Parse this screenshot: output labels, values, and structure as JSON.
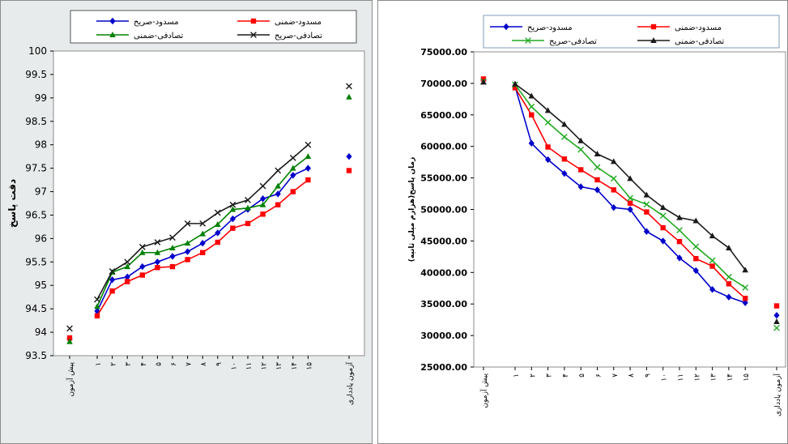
{
  "chart_data": [
    {
      "type": "line",
      "ylabel": "دقت پاسخ",
      "xlabel": "",
      "ylim": [
        93.5,
        100
      ],
      "y_ticks": [
        "93.5",
        "94",
        "94.5",
        "95",
        "95.5",
        "96",
        "96.5",
        "97",
        "97.5",
        "98",
        "98.5",
        "99",
        "99.5",
        "100"
      ],
      "categories": [
        "پیش آزمون",
        "۱",
        "۲",
        "۳",
        "۴",
        "۵",
        "۶",
        "۷",
        "۸",
        "۹",
        "۱۰",
        "۱۱",
        "۱۲",
        "۱۳",
        "۱۴",
        "۱۵",
        "آزمون یادداری"
      ],
      "grid": false,
      "legend_position": "top",
      "series": [
        {
          "name": "مسدود-صریح",
          "color": "#0000cc",
          "marker": "diamond",
          "values": [
            93.85,
            94.45,
            95.12,
            95.18,
            95.4,
            95.5,
            95.62,
            95.72,
            95.9,
            96.12,
            96.42,
            96.62,
            96.85,
            96.95,
            97.35,
            97.5,
            97.75
          ]
        },
        {
          "name": "مسدود-ضمنی",
          "color": "#ff0000",
          "marker": "square",
          "values": [
            93.88,
            94.35,
            94.88,
            95.08,
            95.22,
            95.38,
            95.4,
            95.55,
            95.7,
            95.92,
            96.22,
            96.32,
            96.52,
            96.72,
            97.0,
            97.25,
            97.45
          ]
        },
        {
          "name": "تصادفی-ضمنی",
          "color": "#008000",
          "marker": "triangle",
          "values": [
            93.8,
            94.55,
            95.28,
            95.4,
            95.7,
            95.7,
            95.8,
            95.9,
            96.1,
            96.3,
            96.62,
            96.65,
            96.72,
            97.12,
            97.5,
            97.75,
            99.02
          ]
        },
        {
          "name": "تصادفی-صریح",
          "color": "#1a1a1a",
          "marker": "x",
          "values": [
            94.08,
            94.7,
            95.3,
            95.5,
            95.82,
            95.92,
            96.02,
            96.32,
            96.32,
            96.55,
            96.72,
            96.82,
            97.12,
            97.45,
            97.72,
            98.0,
            99.25
          ]
        }
      ]
    },
    {
      "type": "line",
      "ylabel": "زمان پاسخ(هزارم میلی ثانیه)",
      "xlabel": "",
      "ylim": [
        25000,
        75000
      ],
      "y_ticks": [
        "25000.00",
        "30000.00",
        "35000.00",
        "40000.00",
        "45000.00",
        "50000.00",
        "55000.00",
        "60000.00",
        "65000.00",
        "70000.00",
        "75000.00"
      ],
      "categories": [
        "پیش آزمون",
        "۱",
        "۲",
        "۳",
        "۴",
        "۵",
        "۶",
        "۷",
        "۸",
        "۹",
        "۱۰",
        "۱۱",
        "۱۲",
        "۱۳",
        "۱۴",
        "۱۵",
        "آزمون یادداری"
      ],
      "grid": false,
      "legend_position": "top",
      "series": [
        {
          "name": "مسدود-صریح",
          "color": "#0000cc",
          "marker": "diamond",
          "values": [
            70500,
            69500,
            60500,
            57900,
            55700,
            53600,
            53100,
            50300,
            50000,
            46500,
            45000,
            42300,
            40300,
            37300,
            36100,
            35200,
            33200
          ]
        },
        {
          "name": "مسدود-ضمنی",
          "color": "#ff0000",
          "marker": "square",
          "values": [
            70700,
            69300,
            65000,
            59900,
            58000,
            56300,
            54700,
            53100,
            51000,
            49600,
            47100,
            44900,
            42200,
            41000,
            38200,
            35900,
            34700
          ]
        },
        {
          "name": "تصادفی-صریح",
          "color": "#22aa22",
          "marker": "x",
          "values": [
            70300,
            69800,
            66300,
            63800,
            61500,
            59500,
            56700,
            54900,
            51800,
            50800,
            49000,
            46700,
            44100,
            41900,
            39300,
            37600,
            31200
          ]
        },
        {
          "name": "تصادفی-ضمنی",
          "color": "#1a1a1a",
          "marker": "triangle",
          "values": [
            70200,
            69900,
            68000,
            65700,
            63500,
            60900,
            58800,
            57600,
            54900,
            52300,
            50300,
            48700,
            48200,
            45800,
            43900,
            40400,
            32200
          ]
        }
      ]
    }
  ]
}
